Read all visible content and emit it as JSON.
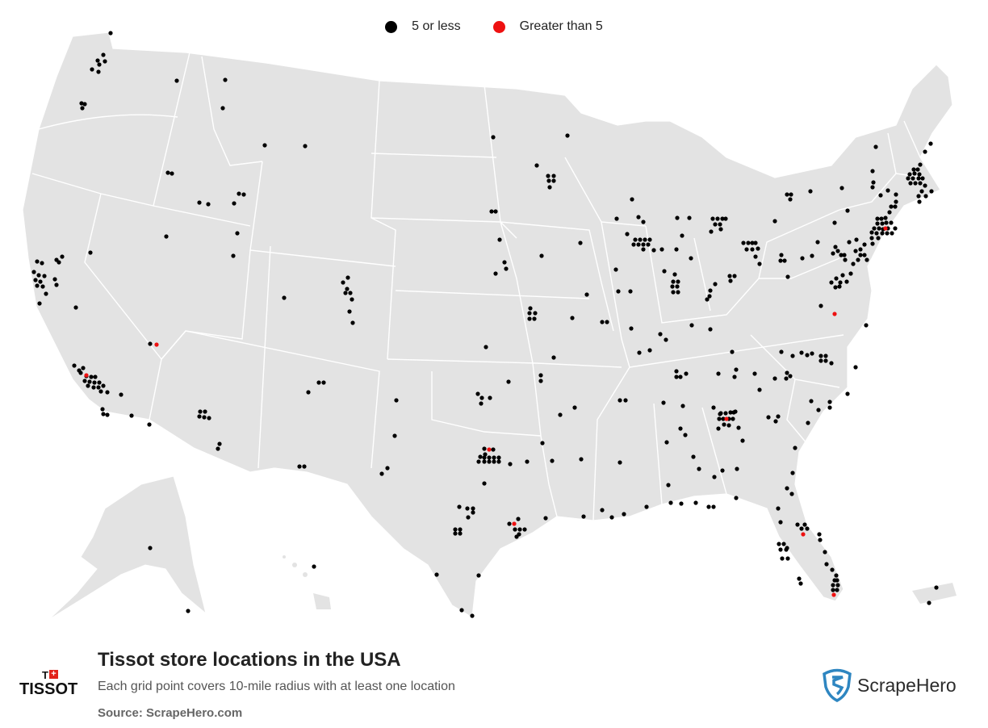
{
  "legend": {
    "items": [
      {
        "label": "5 or less",
        "color": "#000000"
      },
      {
        "label": "Greater than 5",
        "color": "#ee1111"
      }
    ]
  },
  "colors": {
    "land": "#e3e3e3",
    "border": "#ffffff",
    "watermark": "#a9c4d6"
  },
  "footer": {
    "title": "Tissot store locations in the USA",
    "subtitle": "Each grid point covers 10-mile radius with at least one location",
    "source": "Source: ScrapeHero.com"
  },
  "brand": {
    "mark": "T",
    "wordmark": "TISSOT"
  },
  "publisher": {
    "name": "ScrapeHero",
    "icon": "scrapehero-shield-icon"
  }
}
